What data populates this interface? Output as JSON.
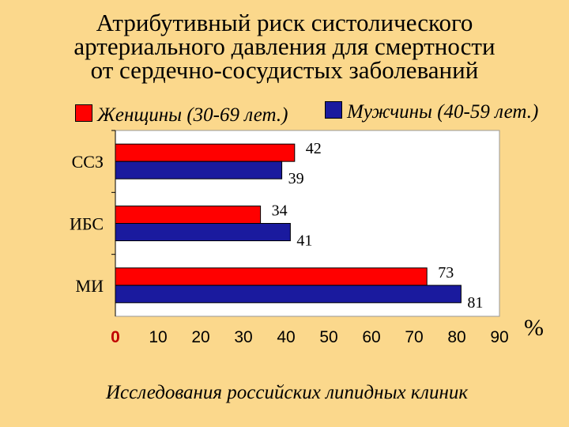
{
  "title_lines": [
    "Атрибутивный риск систолического",
    "артериального давления для смертности",
    "от сердечно-сосудистых заболеваний"
  ],
  "legend": {
    "women": {
      "label": "Женщины (30-69 лет.)",
      "color": "#FF0000"
    },
    "men": {
      "label": "Мужчины (40-59 лет.)",
      "color": "#1A1A9E"
    }
  },
  "unit_label": "%",
  "source": "Исследования российских липидных клиник",
  "chart_data": {
    "type": "bar",
    "orientation": "horizontal",
    "categories": [
      "ССЗ",
      "ИБС",
      "МИ"
    ],
    "series": [
      {
        "name": "Женщины (30-69 лет.)",
        "values": [
          42,
          34,
          73
        ],
        "color": "#FF0000"
      },
      {
        "name": "Мужчины (40-59 лет.)",
        "values": [
          39,
          41,
          81
        ],
        "color": "#1A1A9E"
      }
    ],
    "xlim": [
      0,
      90
    ],
    "xticks": [
      "0",
      "10",
      "20",
      "30",
      "40",
      "50",
      "60",
      "70",
      "80",
      "90"
    ],
    "xlabel": "%",
    "grid": false,
    "legend_position": "top"
  }
}
